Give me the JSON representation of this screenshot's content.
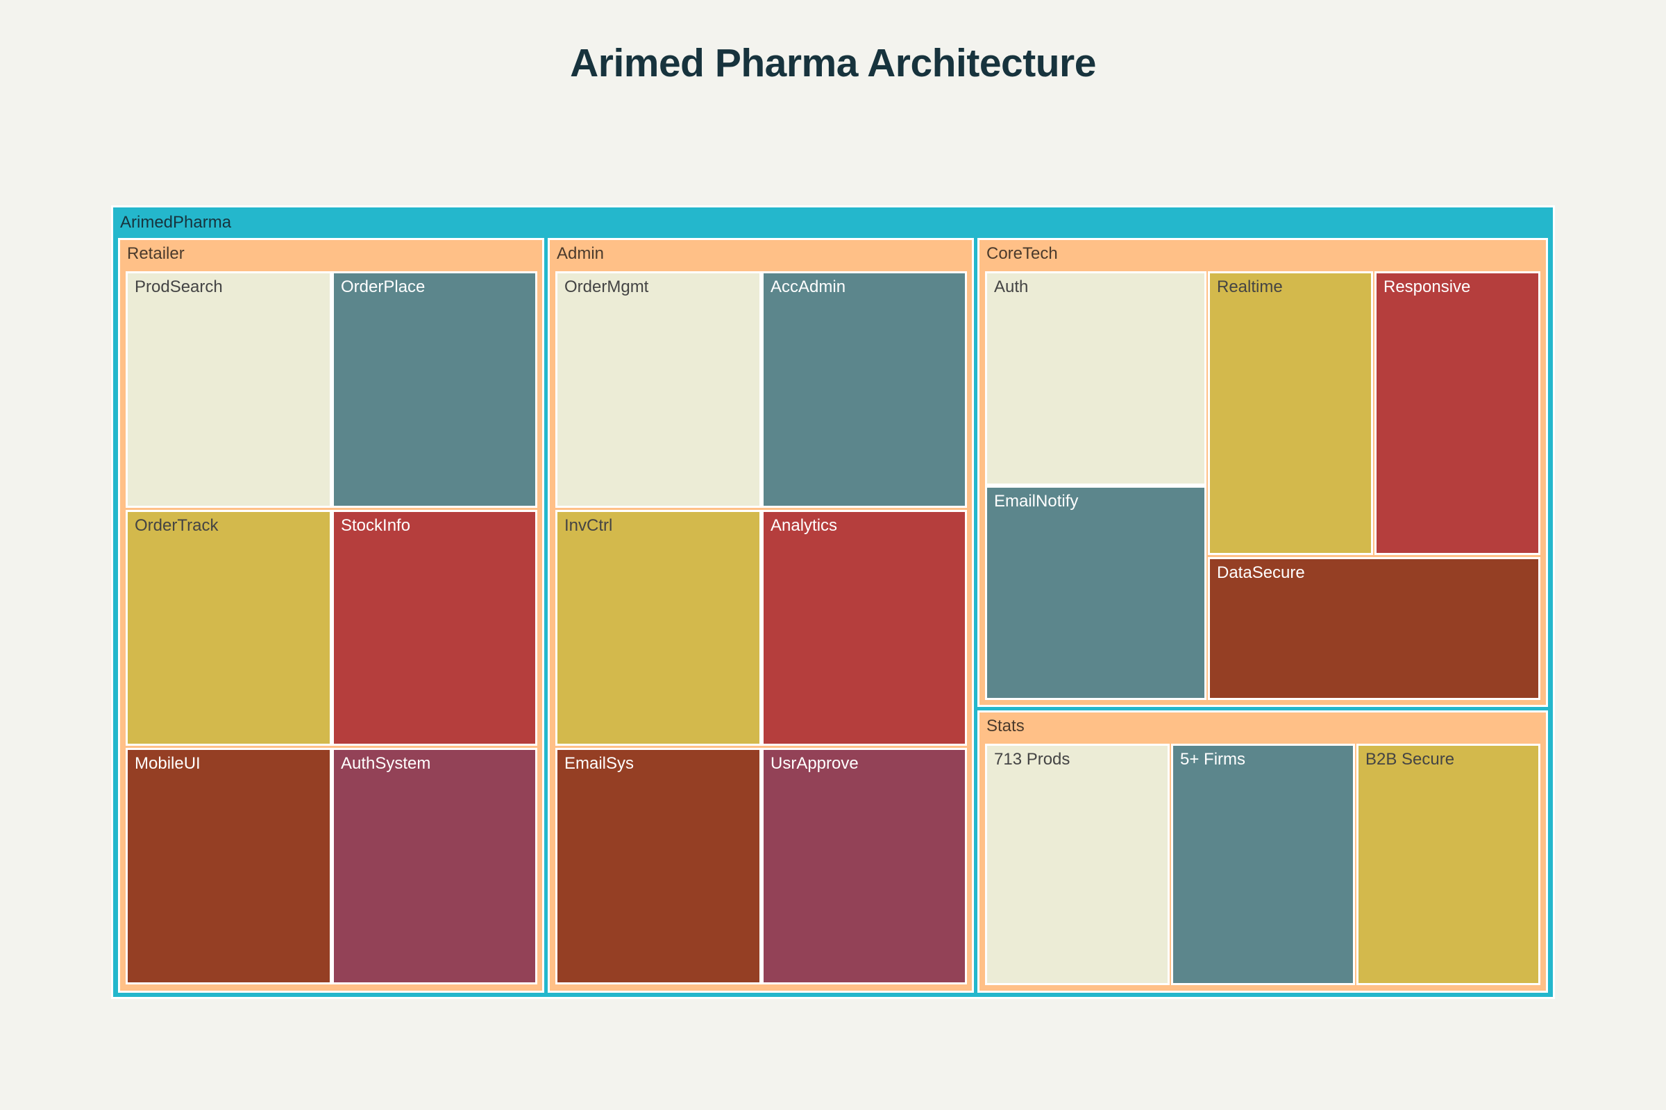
{
  "title": "Arimed Pharma Architecture",
  "colors": {
    "background": "#f3f3ee",
    "root": "#24b7cc",
    "group": "#ffc087",
    "border": "#ffffff",
    "leaf_palette": [
      "#ececd6",
      "#5c868c",
      "#d3b94c",
      "#b53e3d",
      "#953f24",
      "#934257"
    ]
  },
  "chart_data": {
    "type": "treemap",
    "title": "Arimed Pharma Architecture",
    "root": {
      "name": "ArimedPharma",
      "children": [
        {
          "name": "Retailer",
          "children": [
            {
              "name": "ProdSearch",
              "value": 1
            },
            {
              "name": "OrderPlace",
              "value": 1
            },
            {
              "name": "OrderTrack",
              "value": 1
            },
            {
              "name": "StockInfo",
              "value": 1
            },
            {
              "name": "MobileUI",
              "value": 1
            },
            {
              "name": "AuthSystem",
              "value": 1
            }
          ]
        },
        {
          "name": "Admin",
          "children": [
            {
              "name": "OrderMgmt",
              "value": 1
            },
            {
              "name": "AccAdmin",
              "value": 1
            },
            {
              "name": "InvCtrl",
              "value": 1
            },
            {
              "name": "Analytics",
              "value": 1
            },
            {
              "name": "EmailSys",
              "value": 1
            },
            {
              "name": "UsrApprove",
              "value": 1
            }
          ]
        },
        {
          "name": "CoreTech",
          "children": [
            {
              "name": "Auth",
              "value": 1
            },
            {
              "name": "EmailNotify",
              "value": 1
            },
            {
              "name": "Realtime",
              "value": 1
            },
            {
              "name": "Responsive",
              "value": 1
            },
            {
              "name": "DataSecure",
              "value": 1
            }
          ]
        },
        {
          "name": "Stats",
          "children": [
            {
              "name": "713 Prods",
              "value": 1
            },
            {
              "name": "5+ Firms",
              "value": 1
            },
            {
              "name": "B2B Secure",
              "value": 1
            }
          ]
        }
      ]
    }
  }
}
